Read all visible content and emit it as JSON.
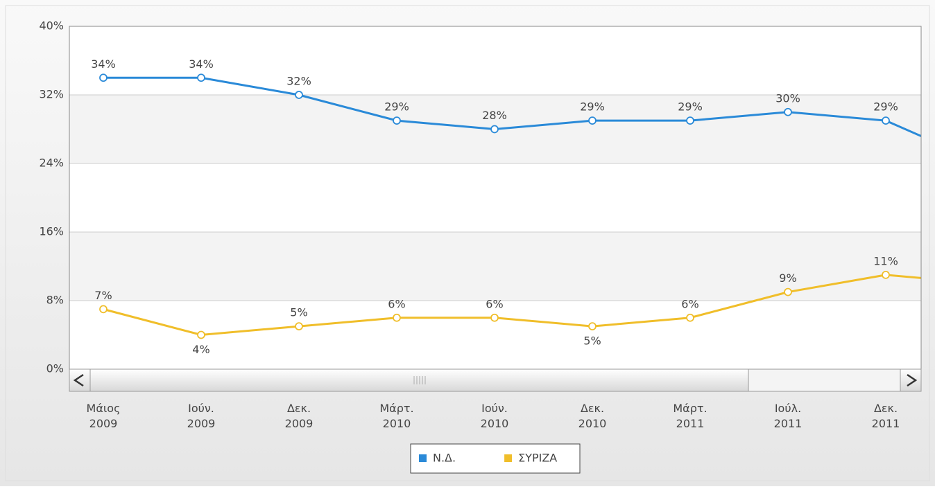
{
  "chart_data": {
    "type": "line",
    "categories": [
      "Μάιος 2009",
      "Ιούν. 2009",
      "Δεκ. 2009",
      "Μάρτ. 2010",
      "Ιούν. 2010",
      "Δεκ. 2010",
      "Μάρτ. 2011",
      "Ιούλ. 2011",
      "Δεκ. 2011",
      null
    ],
    "series": [
      {
        "name": "Ν.Δ.",
        "color": "#2a8ad8",
        "values": [
          34,
          34,
          32,
          29,
          28,
          29,
          29,
          30,
          29,
          24
        ],
        "value_labels": [
          "34%",
          "34%",
          "32%",
          "29%",
          "28%",
          "29%",
          "29%",
          "30%",
          "29%",
          null
        ]
      },
      {
        "name": "ΣΥΡΙΖΑ",
        "color": "#f0be2a",
        "values": [
          7,
          4,
          5,
          6,
          6,
          5,
          6,
          9,
          11,
          10
        ],
        "value_labels": [
          "7%",
          "4%",
          "5%",
          "6%",
          "6%",
          "5%",
          "6%",
          "9%",
          "11%",
          null
        ]
      }
    ],
    "ylim": [
      0,
      40
    ],
    "yticks": [
      {
        "value": 0,
        "label": "0%"
      },
      {
        "value": 8,
        "label": "8%"
      },
      {
        "value": 16,
        "label": "16%"
      },
      {
        "value": 24,
        "label": "24%"
      },
      {
        "value": 32,
        "label": "32%"
      },
      {
        "value": 40,
        "label": "40%"
      }
    ],
    "grid": true,
    "legend": "bottom"
  }
}
